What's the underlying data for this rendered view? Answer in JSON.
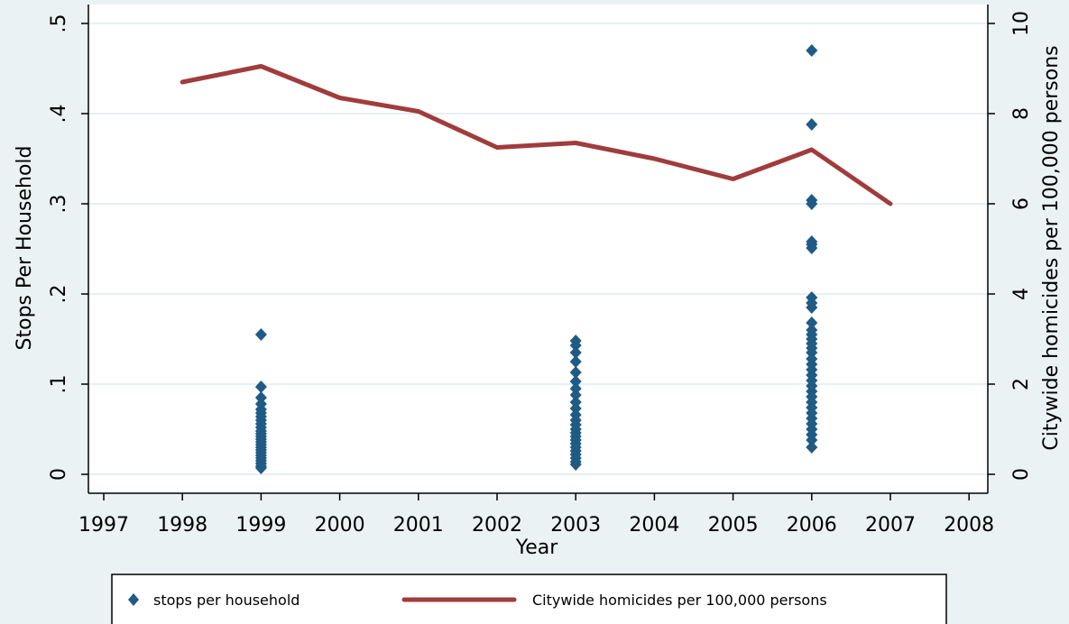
{
  "chart_data": {
    "type": "scatter+line",
    "title": "",
    "xlabel": "Year",
    "ylabel_left": "Stops Per Household",
    "ylabel_right": "Citywide homicides per 100,000 persons",
    "x_ticks": [
      "1997",
      "1998",
      "1999",
      "2000",
      "2001",
      "2002",
      "2003",
      "2004",
      "2005",
      "2006",
      "2007",
      "2008"
    ],
    "x_range": [
      1997,
      2008
    ],
    "y_left_ticks": [
      "0",
      ".1",
      ".2",
      ".3",
      ".4",
      ".5"
    ],
    "y_left_range": [
      0,
      0.5
    ],
    "y_right_ticks": [
      "0",
      "2",
      "4",
      "6",
      "8",
      "10"
    ],
    "y_right_range": [
      0,
      10
    ],
    "grid": "horizontal",
    "legend_position": "bottom",
    "series": [
      {
        "name": "stops per household",
        "type": "scatter",
        "marker": "diamond",
        "axis": "left",
        "color": "#1f5b85",
        "points": [
          [
            1999,
            0.155
          ],
          [
            1999,
            0.097
          ],
          [
            1999,
            0.085
          ],
          [
            1999,
            0.078
          ],
          [
            1999,
            0.072
          ],
          [
            1999,
            0.068
          ],
          [
            1999,
            0.064
          ],
          [
            1999,
            0.06
          ],
          [
            1999,
            0.056
          ],
          [
            1999,
            0.052
          ],
          [
            1999,
            0.048
          ],
          [
            1999,
            0.045
          ],
          [
            1999,
            0.042
          ],
          [
            1999,
            0.039
          ],
          [
            1999,
            0.036
          ],
          [
            1999,
            0.033
          ],
          [
            1999,
            0.03
          ],
          [
            1999,
            0.027
          ],
          [
            1999,
            0.024
          ],
          [
            1999,
            0.021
          ],
          [
            1999,
            0.018
          ],
          [
            1999,
            0.015
          ],
          [
            1999,
            0.012
          ],
          [
            1999,
            0.009
          ],
          [
            1999,
            0.007
          ],
          [
            2003,
            0.148
          ],
          [
            2003,
            0.143
          ],
          [
            2003,
            0.135
          ],
          [
            2003,
            0.125
          ],
          [
            2003,
            0.113
          ],
          [
            2003,
            0.103
          ],
          [
            2003,
            0.095
          ],
          [
            2003,
            0.088
          ],
          [
            2003,
            0.08
          ],
          [
            2003,
            0.073
          ],
          [
            2003,
            0.066
          ],
          [
            2003,
            0.06
          ],
          [
            2003,
            0.055
          ],
          [
            2003,
            0.05
          ],
          [
            2003,
            0.046
          ],
          [
            2003,
            0.042
          ],
          [
            2003,
            0.038
          ],
          [
            2003,
            0.034
          ],
          [
            2003,
            0.03
          ],
          [
            2003,
            0.026
          ],
          [
            2003,
            0.022
          ],
          [
            2003,
            0.018
          ],
          [
            2003,
            0.014
          ],
          [
            2003,
            0.011
          ],
          [
            2006,
            0.47
          ],
          [
            2006,
            0.388
          ],
          [
            2006,
            0.304
          ],
          [
            2006,
            0.3
          ],
          [
            2006,
            0.258
          ],
          [
            2006,
            0.255
          ],
          [
            2006,
            0.251
          ],
          [
            2006,
            0.196
          ],
          [
            2006,
            0.19
          ],
          [
            2006,
            0.185
          ],
          [
            2006,
            0.168
          ],
          [
            2006,
            0.16
          ],
          [
            2006,
            0.155
          ],
          [
            2006,
            0.15
          ],
          [
            2006,
            0.145
          ],
          [
            2006,
            0.14
          ],
          [
            2006,
            0.135
          ],
          [
            2006,
            0.128
          ],
          [
            2006,
            0.122
          ],
          [
            2006,
            0.116
          ],
          [
            2006,
            0.11
          ],
          [
            2006,
            0.104
          ],
          [
            2006,
            0.098
          ],
          [
            2006,
            0.092
          ],
          [
            2006,
            0.086
          ],
          [
            2006,
            0.08
          ],
          [
            2006,
            0.074
          ],
          [
            2006,
            0.068
          ],
          [
            2006,
            0.062
          ],
          [
            2006,
            0.056
          ],
          [
            2006,
            0.05
          ],
          [
            2006,
            0.044
          ],
          [
            2006,
            0.038
          ],
          [
            2006,
            0.03
          ]
        ]
      },
      {
        "name": "Citywide homicides per 100,000 persons",
        "type": "line",
        "axis": "right",
        "color": "#a03c3c",
        "points": [
          [
            1998,
            8.7
          ],
          [
            1999,
            9.05
          ],
          [
            2000,
            8.35
          ],
          [
            2001,
            8.05
          ],
          [
            2002,
            7.25
          ],
          [
            2003,
            7.35
          ],
          [
            2004,
            7.0
          ],
          [
            2005,
            6.55
          ],
          [
            2006,
            7.2
          ],
          [
            2007,
            6.0
          ]
        ]
      }
    ]
  }
}
